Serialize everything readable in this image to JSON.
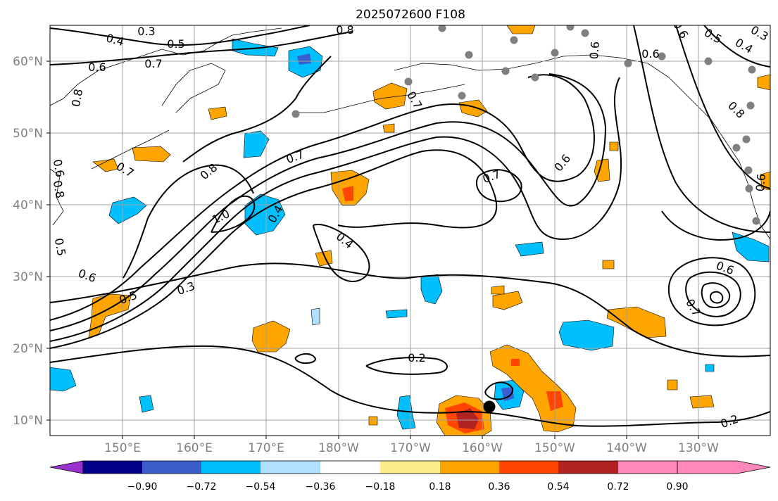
{
  "title": "2025072600 F108",
  "x_ticks": [
    {
      "label": "150°E"
    },
    {
      "label": "160°E"
    },
    {
      "label": "170°E"
    },
    {
      "label": "180°W"
    },
    {
      "label": "170°W"
    },
    {
      "label": "160°W"
    },
    {
      "label": "150°W"
    },
    {
      "label": "140°W"
    },
    {
      "label": "130°W"
    }
  ],
  "y_ticks": [
    {
      "label": "60°N"
    },
    {
      "label": "50°N"
    },
    {
      "label": "40°N"
    },
    {
      "label": "30°N"
    },
    {
      "label": "20°N"
    },
    {
      "label": "10°N"
    }
  ],
  "colorbar": {
    "colors": [
      "#9932CC",
      "#00008B",
      "#3A5FCD",
      "#00BFFF",
      "#B0E0FF",
      "#FFFFFF",
      "#FFEC8B",
      "#FFA500",
      "#FF4500",
      "#B22222",
      "#FF88BB"
    ],
    "labels": [
      "−0.90",
      "−0.72",
      "−0.54",
      "−0.36",
      "−0.18",
      "0.18",
      "0.36",
      "0.54",
      "0.72",
      "0.90"
    ]
  },
  "contour_labels": [
    {
      "text": "0.3"
    },
    {
      "text": "0.4"
    },
    {
      "text": "0.5"
    },
    {
      "text": "0.6"
    },
    {
      "text": "0.7"
    },
    {
      "text": "0.8"
    },
    {
      "text": "0.8"
    },
    {
      "text": "0.8"
    },
    {
      "text": "0.6"
    },
    {
      "text": "0.7"
    },
    {
      "text": "0.8"
    },
    {
      "text": "1.0"
    },
    {
      "text": "0.4"
    },
    {
      "text": "0.7"
    },
    {
      "text": "0.7"
    },
    {
      "text": "0.6"
    },
    {
      "text": "0.6"
    },
    {
      "text": "0.5"
    },
    {
      "text": "0.3"
    },
    {
      "text": "0.4"
    },
    {
      "text": "0.6"
    },
    {
      "text": "0.7"
    },
    {
      "text": "0.2"
    },
    {
      "text": "0.2"
    },
    {
      "text": "0.3"
    },
    {
      "text": "0.5"
    },
    {
      "text": "0.4"
    },
    {
      "text": "0.6"
    },
    {
      "text": "0.6"
    },
    {
      "text": "0.8"
    },
    {
      "text": "0.7"
    },
    {
      "text": "0.5"
    },
    {
      "text": "0.6"
    },
    {
      "text": "0.6"
    }
  ]
}
